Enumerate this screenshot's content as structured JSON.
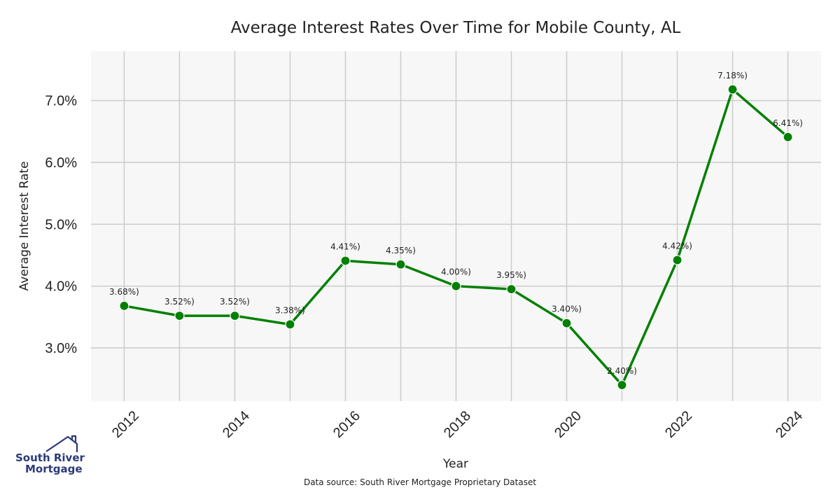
{
  "chart_data": {
    "type": "line",
    "title": "Average Interest Rates Over Time for Mobile County, AL",
    "xlabel": "Year",
    "ylabel": "Average Interest Rate",
    "x": [
      2012,
      2013,
      2014,
      2015,
      2016,
      2017,
      2018,
      2019,
      2020,
      2021,
      2022,
      2023,
      2024
    ],
    "series": [
      {
        "values": [
          3.68,
          3.52,
          3.52,
          3.38,
          4.41,
          4.35,
          4.0,
          3.95,
          3.4,
          2.4,
          4.42,
          7.18,
          6.41
        ],
        "color": "#008000"
      }
    ],
    "data_labels": [
      "3.68%)",
      "3.52%)",
      "3.52%)",
      "3.38%)",
      "4.41%)",
      "4.35%)",
      "4.00%)",
      "3.95%)",
      "3.40%)",
      "2.40%)",
      "4.42%)",
      "7.18%)",
      "6.41%)"
    ],
    "xticks": [
      2012,
      2014,
      2016,
      2018,
      2020,
      2022,
      2024
    ],
    "xtick_labels": [
      "2012",
      "2014",
      "2016",
      "2018",
      "2020",
      "2022",
      "2024"
    ],
    "yticks": [
      3.0,
      4.0,
      5.0,
      6.0,
      7.0
    ],
    "ytick_labels": [
      "3.0%",
      "4.0%",
      "5.0%",
      "6.0%",
      "7.0%"
    ],
    "xlim": [
      2011.4,
      2024.6
    ],
    "ylim": [
      2.14,
      7.8
    ],
    "grid": true,
    "plot_background": "#f7f7f7",
    "grid_color": "#cccccc"
  },
  "source_note": "Data source: South River Mortgage Proprietary Dataset",
  "logo": {
    "line1": "South River",
    "line2": "Mortgage",
    "color": "#2b3a7a"
  }
}
